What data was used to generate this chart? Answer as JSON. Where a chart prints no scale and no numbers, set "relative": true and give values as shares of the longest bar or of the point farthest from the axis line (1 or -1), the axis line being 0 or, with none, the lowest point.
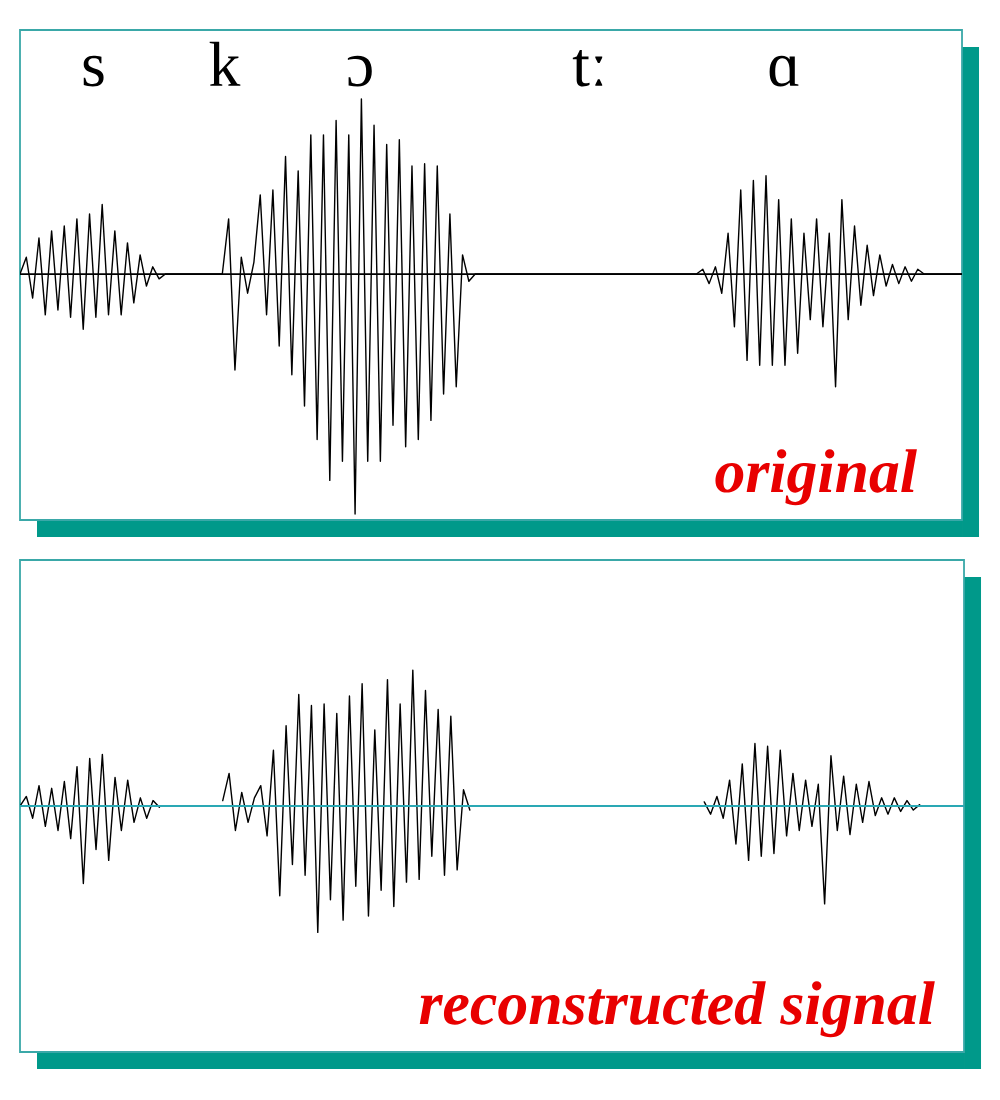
{
  "chart_data": [
    {
      "type": "line",
      "title": "original",
      "relative": true,
      "color": "#000000",
      "categories": [
        null,
        null,
        null,
        null,
        null,
        null,
        null,
        null,
        null,
        null,
        null,
        null,
        null,
        null,
        null,
        null,
        null,
        null,
        null,
        null,
        null,
        null,
        null,
        null,
        null,
        null,
        null,
        null,
        null,
        null,
        null,
        null,
        null,
        null,
        null,
        null,
        null,
        null,
        null,
        null,
        null,
        null,
        null,
        null,
        null,
        null,
        null,
        null,
        null,
        null,
        null,
        null,
        null,
        null,
        null,
        null,
        null,
        null,
        null,
        null,
        null,
        null,
        null,
        null,
        null,
        null,
        null,
        null,
        null,
        null,
        null,
        null,
        null,
        null,
        null,
        null,
        null,
        null,
        null,
        null,
        null,
        null,
        null,
        null,
        null,
        null,
        null,
        null,
        null,
        null,
        null,
        null,
        null,
        null,
        null,
        null,
        null,
        null,
        null,
        null,
        null,
        null,
        null,
        null,
        null,
        null,
        null,
        null,
        null,
        null,
        null,
        null,
        null,
        null,
        null,
        null,
        null,
        null,
        null,
        null,
        null,
        null,
        null,
        null,
        null,
        null,
        null,
        null,
        null,
        null,
        null,
        null,
        null,
        null,
        null,
        null,
        null,
        null,
        null,
        null,
        null,
        null,
        null,
        null,
        null,
        null,
        null,
        null,
        null,
        null
      ],
      "values": [
        0,
        0.07,
        -0.1,
        0.15,
        -0.17,
        0.18,
        -0.15,
        0.2,
        -0.18,
        0.23,
        -0.23,
        0.25,
        -0.18,
        0.29,
        -0.17,
        0.18,
        -0.17,
        0.13,
        -0.12,
        0.08,
        -0.05,
        0.03,
        -0.02,
        0,
        0,
        0,
        0,
        0,
        0,
        0,
        0,
        0,
        0,
        0.23,
        -0.4,
        0.07,
        -0.08,
        0.05,
        0.33,
        -0.17,
        0.35,
        -0.3,
        0.49,
        -0.42,
        0.43,
        -0.55,
        0.58,
        -0.69,
        0.58,
        -0.86,
        0.64,
        -0.78,
        0.58,
        -1,
        0.73,
        -0.78,
        0.62,
        -0.78,
        0.54,
        -0.63,
        0.56,
        -0.72,
        0.45,
        -0.69,
        0.46,
        -0.61,
        0.45,
        -0.5,
        0.25,
        -0.47,
        0.08,
        -0.03,
        0,
        0,
        0,
        0,
        0,
        0,
        0,
        0,
        0,
        0,
        0,
        0,
        0,
        0,
        0,
        0,
        0,
        0,
        0,
        0,
        0,
        0,
        0,
        0,
        0,
        0,
        0,
        0,
        0,
        0,
        0,
        0,
        0,
        0,
        0,
        0,
        0.02,
        -0.04,
        0.03,
        -0.08,
        0.17,
        -0.22,
        0.35,
        -0.36,
        0.39,
        -0.38,
        0.41,
        -0.38,
        0.31,
        -0.38,
        0.23,
        -0.33,
        0.17,
        -0.19,
        0.23,
        -0.22,
        0.17,
        -0.47,
        0.31,
        -0.19,
        0.2,
        -0.13,
        0.12,
        -0.09,
        0.08,
        -0.05,
        0.04,
        -0.04,
        0.03,
        -0.03,
        0.02,
        0,
        0,
        0,
        0,
        0,
        0,
        0
      ],
      "annotations": [
        "s",
        "k",
        "ɔ",
        "tː",
        "ɑ"
      ]
    },
    {
      "type": "line",
      "title": "reconstructed signal",
      "relative": true,
      "color": "#000000",
      "categories": [
        null,
        null,
        null,
        null,
        null,
        null,
        null,
        null,
        null,
        null,
        null,
        null,
        null,
        null,
        null,
        null,
        null,
        null,
        null,
        null,
        null,
        null,
        null,
        null,
        null,
        null,
        null,
        null,
        null,
        null,
        null,
        null,
        null,
        null,
        null,
        null,
        null,
        null,
        null,
        null,
        null,
        null,
        null,
        null,
        null,
        null,
        null,
        null,
        null,
        null,
        null,
        null,
        null,
        null,
        null,
        null,
        null,
        null,
        null,
        null,
        null,
        null,
        null,
        null,
        null,
        null,
        null,
        null,
        null,
        null,
        null,
        null,
        null,
        null,
        null,
        null,
        null,
        null,
        null,
        null,
        null,
        null,
        null,
        null,
        null,
        null,
        null,
        null,
        null,
        null,
        null,
        null,
        null,
        null,
        null,
        null,
        null,
        null,
        null,
        null,
        null,
        null,
        null,
        null,
        null,
        null,
        null,
        null,
        null,
        null,
        null,
        null,
        null,
        null,
        null,
        null,
        null,
        null,
        null,
        null,
        null,
        null,
        null,
        null,
        null,
        null,
        null,
        null,
        null,
        null,
        null,
        null,
        null,
        null,
        null,
        null,
        null,
        null,
        null,
        null,
        null,
        null,
        null,
        null,
        null,
        null,
        null,
        null,
        null,
        null
      ],
      "values": [
        0,
        0.07,
        -0.09,
        0.15,
        -0.15,
        0.13,
        -0.18,
        0.18,
        -0.24,
        0.29,
        -0.57,
        0.35,
        -0.32,
        0.38,
        -0.4,
        0.21,
        -0.18,
        0.19,
        -0.12,
        0.06,
        -0.09,
        0.04,
        -0.01,
        null,
        null,
        null,
        null,
        null,
        null,
        null,
        null,
        null,
        0.04,
        0.24,
        -0.18,
        0.1,
        -0.12,
        0.06,
        0.15,
        -0.22,
        0.41,
        -0.66,
        0.59,
        -0.43,
        0.82,
        -0.51,
        0.74,
        -0.93,
        0.75,
        -0.69,
        0.68,
        -0.84,
        0.81,
        -0.59,
        0.9,
        -0.81,
        0.56,
        -0.62,
        0.93,
        -0.74,
        0.75,
        -0.56,
        1,
        -0.54,
        0.85,
        -0.37,
        0.71,
        -0.51,
        0.66,
        -0.47,
        0.12,
        -0.03,
        null,
        null,
        null,
        null,
        null,
        null,
        null,
        null,
        null,
        null,
        null,
        null,
        null,
        null,
        null,
        null,
        null,
        null,
        null,
        null,
        null,
        null,
        null,
        null,
        null,
        null,
        null,
        null,
        null,
        null,
        null,
        null,
        null,
        null,
        null,
        null,
        0.03,
        -0.06,
        0.07,
        -0.09,
        0.19,
        -0.28,
        0.31,
        -0.4,
        0.46,
        -0.37,
        0.44,
        -0.35,
        0.41,
        -0.22,
        0.24,
        -0.18,
        0.19,
        -0.15,
        0.16,
        -0.72,
        0.37,
        -0.18,
        0.22,
        -0.21,
        0.16,
        -0.12,
        0.18,
        -0.07,
        0.06,
        -0.06,
        0.06,
        -0.04,
        0.04,
        -0.03,
        0.01,
        null,
        null,
        null,
        null,
        null,
        null,
        null
      ],
      "ref_lines": [
        {
          "axis": "y",
          "value": 0,
          "color": "#2aa8b4"
        }
      ]
    }
  ]
}
